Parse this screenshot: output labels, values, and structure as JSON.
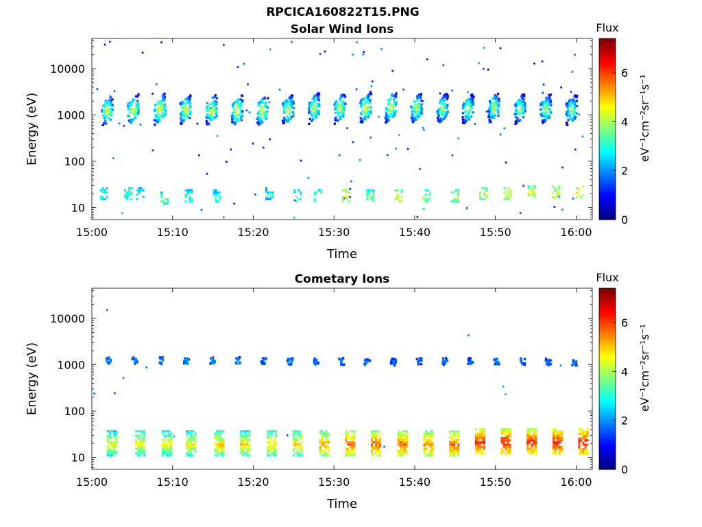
{
  "figure": {
    "title": "RPCICA160822T15.PNG"
  },
  "chart_data": [
    {
      "type": "heatmap",
      "title": "Solar Wind Ions",
      "xlabel": "Time",
      "ylabel": "Energy (eV)",
      "x_ticks": [
        "15:00",
        "15:10",
        "15:20",
        "15:30",
        "15:40",
        "15:50",
        "16:00"
      ],
      "x_range_minutes": [
        0,
        62
      ],
      "y_ticks": [
        10,
        100,
        1000,
        10000
      ],
      "y_tick_labels": [
        "10",
        "100",
        "1000",
        "10000"
      ],
      "y_range": [
        5.5,
        45000
      ],
      "y_scale": "log",
      "colorbar": {
        "label": "Flux",
        "unit": "eV⁻¹cm⁻²sr⁻¹s⁻¹",
        "range": [
          0,
          7.4
        ],
        "ticks": [
          0,
          2,
          4,
          6
        ],
        "colormap": "jet"
      },
      "bursts": [
        {
          "t": 1.8,
          "e": 1300,
          "v": 4.6
        },
        {
          "t": 5.0,
          "e": 1350,
          "v": 4.8
        },
        {
          "t": 8.3,
          "e": 1400,
          "v": 4.9
        },
        {
          "t": 11.5,
          "e": 1350,
          "v": 4.7
        },
        {
          "t": 14.7,
          "e": 1350,
          "v": 4.8
        },
        {
          "t": 17.9,
          "e": 1300,
          "v": 4.8
        },
        {
          "t": 21.0,
          "e": 1300,
          "v": 4.7
        },
        {
          "t": 24.2,
          "e": 1350,
          "v": 4.6
        },
        {
          "t": 27.4,
          "e": 1500,
          "v": 4.5
        },
        {
          "t": 30.6,
          "e": 1500,
          "v": 4.6
        },
        {
          "t": 33.8,
          "e": 1500,
          "v": 4.7
        },
        {
          "t": 36.9,
          "e": 1550,
          "v": 4.7
        },
        {
          "t": 40.1,
          "e": 1500,
          "v": 4.5
        },
        {
          "t": 43.3,
          "e": 1450,
          "v": 4.3
        },
        {
          "t": 46.5,
          "e": 1450,
          "v": 4.3
        },
        {
          "t": 49.7,
          "e": 1500,
          "v": 4.4
        },
        {
          "t": 52.9,
          "e": 1450,
          "v": 4.3
        },
        {
          "t": 56.1,
          "e": 1400,
          "v": 4.3
        },
        {
          "t": 59.3,
          "e": 1350,
          "v": 4.2
        }
      ],
      "low_bands": [
        {
          "t": 1.5,
          "e": 20,
          "v": 3.2
        },
        {
          "t": 4.5,
          "e": 20,
          "v": 3.2
        },
        {
          "t": 6.0,
          "e": 20,
          "v": 3.0
        },
        {
          "t": 9.0,
          "e": 16,
          "v": 3.4
        },
        {
          "t": 12.0,
          "e": 18,
          "v": 3.2
        },
        {
          "t": 15.5,
          "e": 18,
          "v": 3.1
        },
        {
          "t": 22.0,
          "e": 20,
          "v": 3.0
        },
        {
          "t": 25.5,
          "e": 18,
          "v": 3.3
        },
        {
          "t": 28.0,
          "e": 18,
          "v": 3.4
        },
        {
          "t": 31.5,
          "e": 18,
          "v": 4.5
        },
        {
          "t": 34.5,
          "e": 18,
          "v": 3.7
        },
        {
          "t": 38.0,
          "e": 18,
          "v": 4.2
        },
        {
          "t": 41.5,
          "e": 18,
          "v": 3.8
        },
        {
          "t": 45.0,
          "e": 18,
          "v": 4.0
        },
        {
          "t": 48.5,
          "e": 20,
          "v": 4.0
        },
        {
          "t": 51.5,
          "e": 20,
          "v": 4.2
        },
        {
          "t": 54.5,
          "e": 22,
          "v": 4.2
        },
        {
          "t": 57.5,
          "e": 22,
          "v": 4.4
        },
        {
          "t": 60.5,
          "e": 22,
          "v": 4.6
        }
      ],
      "background_dots": 120
    },
    {
      "type": "heatmap",
      "title": "Cometary Ions",
      "xlabel": "Time",
      "ylabel": "Energy (eV)",
      "x_ticks": [
        "15:00",
        "15:10",
        "15:20",
        "15:30",
        "15:40",
        "15:50",
        "16:00"
      ],
      "x_range_minutes": [
        0,
        62
      ],
      "y_ticks": [
        10,
        100,
        1000,
        10000
      ],
      "y_tick_labels": [
        "10",
        "100",
        "1000",
        "10000"
      ],
      "y_range": [
        5.5,
        45000
      ],
      "y_scale": "log",
      "colorbar": {
        "label": "Flux",
        "unit": "eV⁻¹cm⁻²sr⁻¹s⁻¹",
        "range": [
          0,
          7.4
        ],
        "ticks": [
          0,
          2,
          4,
          6
        ],
        "colormap": "jet"
      },
      "bursts": [
        {
          "t": 2.0,
          "e": 1300,
          "v": 2.2
        },
        {
          "t": 5.2,
          "e": 1300,
          "v": 2.2
        },
        {
          "t": 8.4,
          "e": 1300,
          "v": 2.2
        },
        {
          "t": 11.6,
          "e": 1300,
          "v": 2.2
        },
        {
          "t": 14.8,
          "e": 1300,
          "v": 2.2
        },
        {
          "t": 18.0,
          "e": 1300,
          "v": 2.2
        },
        {
          "t": 21.2,
          "e": 1300,
          "v": 2.1
        },
        {
          "t": 24.4,
          "e": 1250,
          "v": 2.1
        },
        {
          "t": 27.6,
          "e": 1250,
          "v": 2.1
        },
        {
          "t": 30.8,
          "e": 1250,
          "v": 2.1
        },
        {
          "t": 34.0,
          "e": 1250,
          "v": 2.1
        },
        {
          "t": 37.2,
          "e": 1200,
          "v": 2.0
        },
        {
          "t": 40.4,
          "e": 1250,
          "v": 2.0
        },
        {
          "t": 43.6,
          "e": 1250,
          "v": 2.0
        },
        {
          "t": 46.8,
          "e": 1250,
          "v": 2.0
        },
        {
          "t": 50.0,
          "e": 1250,
          "v": 2.0
        },
        {
          "t": 53.2,
          "e": 1250,
          "v": 2.0
        },
        {
          "t": 56.4,
          "e": 1200,
          "v": 2.0
        },
        {
          "t": 59.6,
          "e": 1200,
          "v": 2.0
        }
      ],
      "low_bands": [
        {
          "t": 2.5,
          "e": 20,
          "v": 4.6
        },
        {
          "t": 6.0,
          "e": 20,
          "v": 4.8
        },
        {
          "t": 9.3,
          "e": 20,
          "v": 4.7
        },
        {
          "t": 12.3,
          "e": 20,
          "v": 4.8
        },
        {
          "t": 15.8,
          "e": 20,
          "v": 5.0
        },
        {
          "t": 19.0,
          "e": 20,
          "v": 4.9
        },
        {
          "t": 22.3,
          "e": 20,
          "v": 5.0
        },
        {
          "t": 25.5,
          "e": 20,
          "v": 5.0
        },
        {
          "t": 28.8,
          "e": 20,
          "v": 5.4
        },
        {
          "t": 32.0,
          "e": 20,
          "v": 5.8
        },
        {
          "t": 35.2,
          "e": 20,
          "v": 5.8
        },
        {
          "t": 38.5,
          "e": 20,
          "v": 5.8
        },
        {
          "t": 41.7,
          "e": 20,
          "v": 5.6
        },
        {
          "t": 44.9,
          "e": 20,
          "v": 5.8
        },
        {
          "t": 48.1,
          "e": 22,
          "v": 6.2
        },
        {
          "t": 51.3,
          "e": 22,
          "v": 6.3
        },
        {
          "t": 54.5,
          "e": 22,
          "v": 6.2
        },
        {
          "t": 57.7,
          "e": 22,
          "v": 6.3
        },
        {
          "t": 60.9,
          "e": 22,
          "v": 6.4
        }
      ],
      "background_dots": 12
    }
  ]
}
